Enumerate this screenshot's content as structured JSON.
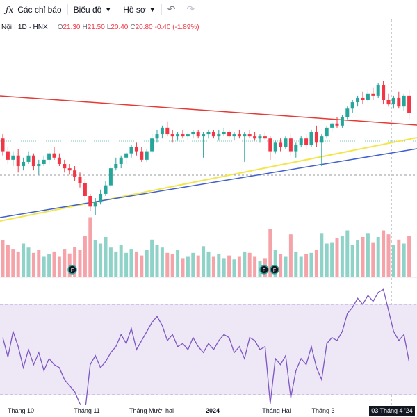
{
  "toolbar": {
    "indicators_label": "Các chỉ báo",
    "chart_label": "Biểu đồ",
    "profile_label": "Hồ sơ"
  },
  "legend": {
    "symbol": "Nội · 1D · HNX",
    "open_label": "O",
    "open": "21.30",
    "high_label": "H",
    "high": "21.50",
    "low_label": "L",
    "low": "20.40",
    "close_label": "C",
    "close": "20.80",
    "change": "-0.40 (-1.89%)"
  },
  "colors": {
    "up": "#26a69a",
    "down": "#f23645",
    "vol_up": "#8fd3c8",
    "vol_down": "#f5a3a8",
    "trend_red": "#e53935",
    "trend_yellow": "#f2e64a",
    "trend_blue": "#3f5fcf",
    "rsi_line": "#7e57c2",
    "rsi_band": "#ede7f6"
  },
  "xaxis": {
    "labels": [
      "Tháng 10",
      "Tháng 11",
      "Tháng Mười hai",
      "2024",
      "Tháng Hai",
      "Tháng 3"
    ],
    "crosshair_date": "03 Tháng 4 '24"
  },
  "events": [
    {
      "icon": "dividend-icon",
      "label": "F"
    },
    {
      "icon": "dividend-icon",
      "label": "F"
    },
    {
      "icon": "dividend-icon",
      "label": "F"
    }
  ],
  "chart_data": {
    "type": "candlestick",
    "ohlc": [
      [
        20.2,
        20.4,
        19.4,
        19.6
      ],
      [
        19.6,
        19.8,
        19.0,
        19.2
      ],
      [
        19.2,
        19.6,
        18.9,
        19.4
      ],
      [
        19.4,
        19.7,
        18.6,
        18.9
      ],
      [
        18.9,
        19.3,
        18.7,
        19.1
      ],
      [
        19.1,
        19.6,
        19.0,
        19.4
      ],
      [
        19.4,
        19.5,
        18.7,
        18.9
      ],
      [
        18.9,
        19.2,
        18.5,
        19.0
      ],
      [
        19.0,
        19.4,
        18.9,
        19.2
      ],
      [
        19.2,
        19.6,
        19.0,
        19.5
      ],
      [
        19.5,
        19.8,
        19.2,
        19.3
      ],
      [
        19.3,
        19.5,
        18.9,
        19.0
      ],
      [
        19.0,
        19.2,
        18.6,
        18.8
      ],
      [
        18.8,
        19.0,
        18.5,
        18.7
      ],
      [
        18.7,
        18.9,
        18.2,
        18.4
      ],
      [
        18.4,
        18.6,
        17.9,
        18.1
      ],
      [
        18.1,
        18.3,
        17.3,
        17.5
      ],
      [
        17.5,
        17.6,
        16.8,
        17.0
      ],
      [
        17.0,
        17.4,
        16.6,
        17.2
      ],
      [
        17.2,
        17.8,
        17.1,
        17.6
      ],
      [
        17.6,
        18.2,
        17.5,
        18.0
      ],
      [
        18.0,
        18.9,
        17.9,
        18.8
      ],
      [
        18.8,
        19.3,
        18.7,
        19.0
      ],
      [
        19.0,
        19.4,
        18.8,
        19.3
      ],
      [
        19.3,
        19.6,
        19.0,
        19.5
      ],
      [
        19.5,
        19.9,
        19.3,
        19.8
      ],
      [
        19.8,
        20.0,
        19.4,
        19.6
      ],
      [
        19.6,
        19.8,
        19.1,
        19.2
      ],
      [
        19.2,
        19.7,
        19.1,
        19.6
      ],
      [
        19.6,
        20.4,
        19.5,
        20.2
      ],
      [
        20.2,
        20.6,
        20.0,
        20.4
      ],
      [
        20.4,
        20.8,
        20.2,
        20.7
      ],
      [
        20.7,
        21.0,
        20.3,
        20.4
      ],
      [
        20.4,
        20.6,
        20.0,
        20.3
      ],
      [
        20.3,
        20.5,
        20.1,
        20.4
      ],
      [
        20.4,
        20.6,
        20.2,
        20.3
      ],
      [
        20.3,
        20.5,
        20.1,
        20.4
      ],
      [
        20.4,
        20.6,
        20.2,
        20.5
      ],
      [
        20.5,
        20.6,
        20.2,
        20.3
      ],
      [
        20.3,
        20.5,
        19.3,
        20.4
      ],
      [
        20.4,
        20.6,
        20.2,
        20.5
      ],
      [
        20.5,
        20.6,
        20.2,
        20.3
      ],
      [
        20.3,
        20.6,
        20.1,
        20.4
      ],
      [
        20.4,
        20.7,
        20.3,
        20.5
      ],
      [
        20.5,
        20.6,
        20.2,
        20.3
      ],
      [
        20.3,
        20.5,
        20.1,
        20.4
      ],
      [
        20.4,
        20.6,
        20.2,
        20.3
      ],
      [
        20.3,
        20.5,
        19.1,
        20.4
      ],
      [
        20.4,
        20.6,
        20.2,
        20.3
      ],
      [
        20.3,
        20.5,
        20.1,
        20.2
      ],
      [
        20.2,
        20.4,
        20.0,
        20.3
      ],
      [
        20.3,
        20.5,
        20.1,
        20.2
      ],
      [
        20.2,
        20.3,
        19.2,
        19.6
      ],
      [
        19.6,
        20.1,
        19.5,
        20.0
      ],
      [
        20.0,
        20.2,
        19.6,
        19.8
      ],
      [
        19.8,
        20.3,
        19.7,
        20.2
      ],
      [
        20.2,
        20.4,
        19.4,
        19.6
      ],
      [
        19.6,
        20.0,
        19.3,
        19.9
      ],
      [
        19.9,
        20.3,
        19.8,
        20.2
      ],
      [
        20.2,
        20.4,
        19.7,
        19.9
      ],
      [
        19.9,
        20.6,
        19.8,
        20.5
      ],
      [
        20.5,
        20.8,
        19.8,
        20.0
      ],
      [
        20.0,
        20.4,
        18.9,
        20.3
      ],
      [
        20.3,
        20.8,
        20.2,
        20.7
      ],
      [
        20.7,
        21.0,
        20.5,
        20.9
      ],
      [
        20.9,
        21.2,
        20.7,
        20.8
      ],
      [
        20.8,
        21.3,
        20.7,
        21.2
      ],
      [
        21.2,
        21.7,
        21.1,
        21.6
      ],
      [
        21.6,
        22.0,
        21.4,
        21.9
      ],
      [
        21.9,
        22.2,
        21.7,
        22.1
      ],
      [
        22.1,
        22.4,
        21.8,
        22.0
      ],
      [
        22.0,
        22.5,
        21.9,
        22.3
      ],
      [
        22.3,
        22.6,
        22.0,
        22.2
      ],
      [
        22.2,
        22.8,
        22.1,
        22.7
      ],
      [
        22.7,
        22.9,
        21.8,
        22.0
      ],
      [
        22.0,
        22.3,
        21.7,
        21.8
      ],
      [
        21.8,
        22.2,
        21.6,
        22.1
      ],
      [
        22.1,
        22.4,
        21.6,
        21.7
      ],
      [
        21.7,
        22.3,
        21.5,
        22.2
      ],
      [
        22.2,
        22.5,
        21.1,
        21.4
      ]
    ],
    "volume": [
      55,
      48,
      42,
      38,
      50,
      44,
      36,
      40,
      30,
      34,
      38,
      30,
      42,
      35,
      45,
      40,
      62,
      90,
      55,
      50,
      60,
      44,
      38,
      48,
      36,
      42,
      38,
      32,
      40,
      56,
      48,
      44,
      36,
      34,
      40,
      28,
      30,
      36,
      32,
      46,
      38,
      30,
      34,
      28,
      32,
      26,
      30,
      38,
      36,
      30,
      24,
      28,
      72,
      40,
      34,
      30,
      64,
      38,
      30,
      34,
      36,
      40,
      66,
      50,
      52,
      58,
      62,
      70,
      48,
      55,
      60,
      66,
      52,
      60,
      70,
      64,
      48,
      56,
      50,
      62
    ],
    "volume_up": [
      false,
      false,
      false,
      false,
      true,
      true,
      false,
      false,
      true,
      true,
      false,
      false,
      false,
      false,
      false,
      false,
      false,
      false,
      true,
      true,
      true,
      true,
      true,
      true,
      true,
      true,
      false,
      false,
      true,
      true,
      true,
      true,
      false,
      false,
      true,
      false,
      true,
      true,
      false,
      true,
      true,
      false,
      true,
      true,
      false,
      true,
      false,
      true,
      false,
      false,
      true,
      false,
      false,
      true,
      false,
      true,
      false,
      true,
      true,
      false,
      true,
      false,
      true,
      true,
      true,
      false,
      true,
      true,
      true,
      true,
      false,
      true,
      false,
      true,
      false,
      false,
      true,
      false,
      true,
      false
    ],
    "rsi": [
      58,
      45,
      62,
      52,
      38,
      50,
      40,
      48,
      36,
      44,
      40,
      38,
      30,
      26,
      22,
      14,
      9,
      40,
      46,
      38,
      42,
      48,
      52,
      60,
      54,
      64,
      50,
      56,
      62,
      68,
      72,
      66,
      56,
      60,
      52,
      54,
      50,
      58,
      52,
      48,
      54,
      50,
      56,
      60,
      58,
      48,
      52,
      44,
      58,
      56,
      50,
      52,
      14,
      44,
      40,
      46,
      18,
      36,
      44,
      40,
      52,
      38,
      30,
      54,
      58,
      56,
      62,
      74,
      78,
      84,
      80,
      86,
      82,
      88,
      90,
      76,
      62,
      56,
      60,
      42
    ]
  }
}
